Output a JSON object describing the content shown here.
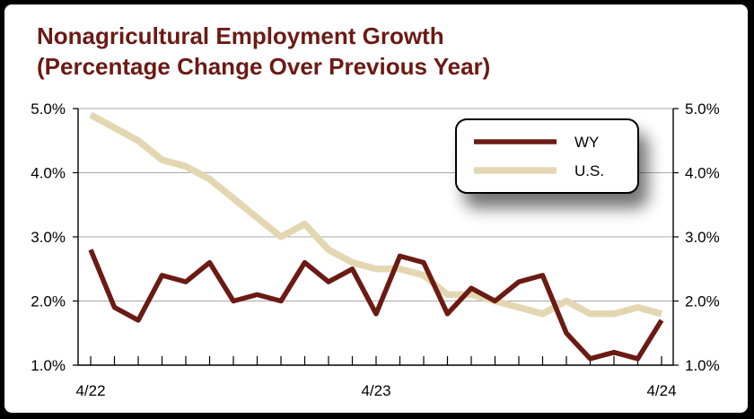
{
  "chart_data": {
    "type": "line",
    "title": "Nonagricultural Employment Growth",
    "subtitle": "(Percentage Change Over Previous Year)",
    "xlabel": "",
    "ylabel": "",
    "ylim": [
      1.0,
      5.0
    ],
    "yticks": [
      "1.0%",
      "2.0%",
      "3.0%",
      "4.0%",
      "5.0%"
    ],
    "ytick_values": [
      1,
      2,
      3,
      4,
      5
    ],
    "secondary_y_axis": true,
    "x": [
      "4/22",
      "5/22",
      "6/22",
      "7/22",
      "8/22",
      "9/22",
      "10/22",
      "11/22",
      "12/22",
      "1/23",
      "2/23",
      "3/23",
      "4/23",
      "5/23",
      "6/23",
      "7/23",
      "8/23",
      "9/23",
      "10/23",
      "11/23",
      "12/23",
      "1/24",
      "2/24",
      "3/24",
      "4/24"
    ],
    "x_tick_labels": [
      "4/22",
      "4/23",
      "4/24"
    ],
    "x_tick_label_indices": [
      0,
      12,
      24
    ],
    "grid": "horizontal",
    "legend": "top-right",
    "series": [
      {
        "name": "WY",
        "color": "#6b1a14",
        "values": [
          2.8,
          1.9,
          1.7,
          2.4,
          2.3,
          2.6,
          2.0,
          2.1,
          2.0,
          2.6,
          2.3,
          2.5,
          1.8,
          2.7,
          2.6,
          1.8,
          2.2,
          2.0,
          2.3,
          2.4,
          1.5,
          1.1,
          1.2,
          1.1,
          1.7
        ]
      },
      {
        "name": "U.S.",
        "color": "#e3d7b2",
        "values": [
          4.9,
          4.7,
          4.5,
          4.2,
          4.1,
          3.9,
          3.6,
          3.3,
          3.0,
          3.2,
          2.8,
          2.6,
          2.5,
          2.5,
          2.4,
          2.1,
          2.1,
          2.0,
          1.9,
          1.8,
          2.0,
          1.8,
          1.8,
          1.9,
          1.8
        ]
      }
    ]
  }
}
